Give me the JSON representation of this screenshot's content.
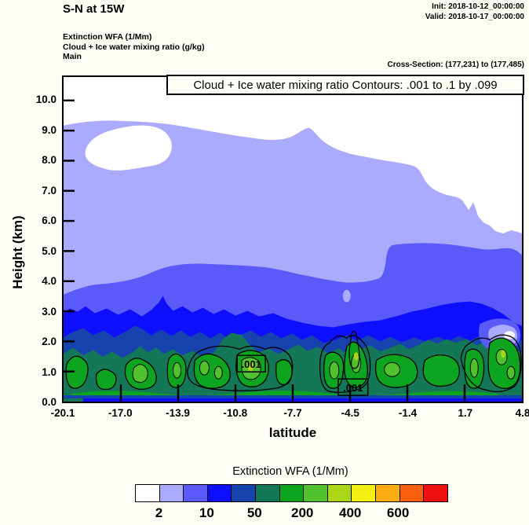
{
  "header": {
    "title": "S-N at 15W",
    "init": "Init: 2018-10-12_00:00:00",
    "valid": "Valid: 2018-10-17_00:00:00",
    "field1": "Extinction WFA  (1/Mm)",
    "field2": "Cloud + Ice water mixing ratio  (g/kg)",
    "domain": "Main",
    "cross_section": "Cross-Section: (177,231) to (177,485)"
  },
  "chart_data": {
    "type": "filled-contour-cross-section",
    "title": "Cloud + Ice water mixing ratio Contours: .001 to .1 by .099",
    "xlabel": "latitude",
    "ylabel": "Height (km)",
    "xlim": [
      -20.1,
      4.8
    ],
    "ylim": [
      0.0,
      10.8
    ],
    "x_tick_labels": [
      "-20.1",
      "-17.0",
      "-13.9",
      "-10.8",
      "-7.7",
      "-4.5",
      "-1.4",
      "1.7",
      "4.8"
    ],
    "y_tick_labels": [
      "10.0",
      "9.0",
      "8.0",
      "7.0",
      "6.0",
      "5.0",
      "4.0",
      "3.0",
      "2.0",
      "1.0",
      "0.0"
    ],
    "grid": false,
    "fill_field": "Extinction WFA (1/Mm)",
    "fill_levels": [
      2,
      5,
      10,
      20,
      50,
      100,
      200,
      300,
      400,
      500,
      600,
      700
    ],
    "fill_bands_top_height_km_at_x_ticks": [
      {
        "level_gte": 2,
        "color": "#aaaaff",
        "tops": [
          9.2,
          9.3,
          8.9,
          8.6,
          8.2,
          7.8,
          6.7,
          6.2,
          5.4
        ]
      },
      {
        "level_gte": 5,
        "color": "#5a5af8",
        "tops": [
          3.6,
          4.3,
          4.5,
          4.3,
          3.9,
          4.2,
          5.2,
          5.2,
          4.9
        ]
      },
      {
        "level_gte": 10,
        "color": "#0f0fff",
        "tops": [
          3.0,
          3.1,
          3.3,
          2.8,
          2.6,
          2.9,
          3.1,
          3.1,
          2.5
        ]
      },
      {
        "level_gte": 20,
        "color": "#1743ae",
        "tops": [
          2.2,
          2.4,
          2.3,
          2.2,
          2.1,
          2.2,
          2.3,
          2.3,
          2.0
        ]
      },
      {
        "level_gte": 50,
        "color": "#147758",
        "tops": [
          1.6,
          1.8,
          2.3,
          1.7,
          1.6,
          1.9,
          1.9,
          1.8,
          2.1
        ]
      },
      {
        "level_gte": 100,
        "color": "#0da520",
        "tops": [
          1.4,
          1.3,
          1.5,
          1.7,
          1.4,
          1.8,
          1.3,
          1.5,
          2.1
        ]
      }
    ],
    "line_field": "Cloud + Ice water mixing ratio (g/kg)",
    "line_contour_levels": [
      0.001,
      0.1
    ],
    "contour_labels": [
      ".001",
      ".001"
    ],
    "notes": "Black contour loops hug low-level green extinction cells below ~2 km; embedded white cloud-free pocket near 8 km on the left and clear wedge on the right above ~5.5 km."
  },
  "colorbar": {
    "title": "Extinction WFA  (1/Mm)",
    "tick_labels": [
      "2",
      "10",
      "50",
      "200",
      "400",
      "600"
    ],
    "colors": [
      "#ffffff",
      "#aaaaff",
      "#5a5af8",
      "#0f0fff",
      "#1743ae",
      "#147758",
      "#0da520",
      "#52c12e",
      "#aad616",
      "#f2ef12",
      "#fbab10",
      "#fa5f0e",
      "#ef1010"
    ]
  }
}
